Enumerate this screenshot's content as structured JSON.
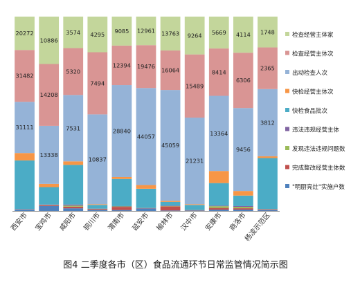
{
  "chart_data": {
    "type": "bar",
    "stacked": "percent",
    "categories": [
      "西安市",
      "宝鸡市",
      "咸阳市",
      "铜川市",
      "渭南市",
      "延安市",
      "榆林市",
      "汉中市",
      "安康市",
      "商洛市",
      "杨凌示范区"
    ],
    "series": [
      {
        "name": "\"明厨亮灶\"实施户数",
        "color": "#4f81bd",
        "values": [
          980,
          1120,
          300,
          150,
          300,
          1160,
          195,
          120,
          240,
          160,
          62
        ]
      },
      {
        "name": "完成整改经营主体数",
        "color": "#c0504d",
        "values": [
          100,
          190,
          190,
          90,
          980,
          125,
          1670,
          70,
          300,
          150,
          30
        ]
      },
      {
        "name": "发现违法违规问题数",
        "color": "#9bbb59",
        "values": [
          90,
          60,
          120,
          25,
          130,
          75,
          105,
          35,
          300,
          160,
          12
        ]
      },
      {
        "name": "违法违规经营主体",
        "color": "#8064a2",
        "values": [
          40,
          110,
          120,
          20,
          120,
          35,
          200,
          30,
          120,
          85,
          10
        ]
      },
      {
        "name": "快检食品批次",
        "color": "#4bacc6",
        "values": [
          29500,
          4000,
          4500,
          450,
          8500,
          8700,
          1520,
          1230,
          4000,
          1200,
          2890
        ]
      },
      {
        "name": "快检经营主体次",
        "color": "#f79646",
        "values": [
          4480,
          740,
          400,
          70,
          600,
          1700,
          420,
          160,
          2150,
          520,
          100
        ]
      },
      {
        "name": "出动检查人次",
        "color": "#95b3d7",
        "values": [
          31111,
          13338,
          7531,
          10837,
          28840,
          44057,
          45059,
          21231,
          13364,
          9456,
          3812
        ]
      },
      {
        "name": "检查经营主体次",
        "color": "#d99594",
        "values": [
          31482,
          14208,
          5320,
          7494,
          12394,
          19476,
          16064,
          15489,
          8414,
          6306,
          2365
        ]
      },
      {
        "name": "检查经营主体家",
        "color": "#c3d69b",
        "values": [
          20272,
          10886,
          3574,
          4295,
          9085,
          12961,
          13763,
          9264,
          5669,
          4114,
          1748
        ]
      }
    ],
    "data_labels": {
      "series_labeled": [
        "出动检查人次",
        "检查经营主体次",
        "检查经营主体家"
      ]
    },
    "ylim": [
      0,
      100
    ],
    "grid": false,
    "legend_position": "right"
  },
  "caption": "图4   二季度各市（区）食品流通环节日常监管情况简示图"
}
